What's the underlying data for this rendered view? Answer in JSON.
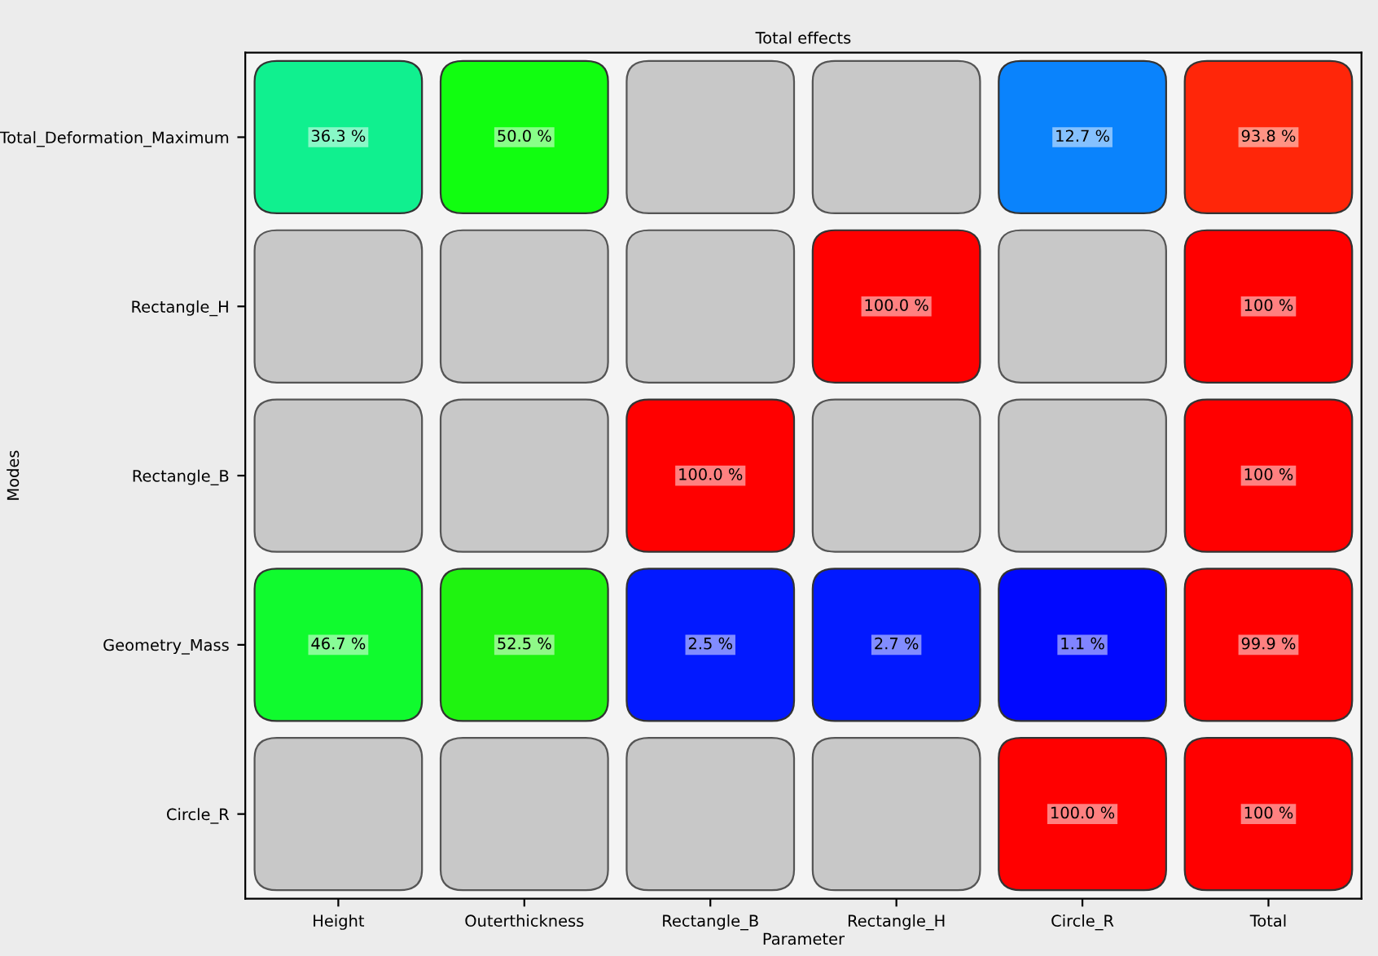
{
  "chart_data": {
    "type": "heatmap",
    "title": "Total effects",
    "xlabel": "Parameter",
    "ylabel": "Modes",
    "categories": [
      "Height",
      "Outerthickness",
      "Rectangle_B",
      "Rectangle_H",
      "Circle_R",
      "Total"
    ],
    "y_categories": [
      "Total_Deformation_Maximum",
      "Rectangle_H",
      "Rectangle_B",
      "Geometry_Mass",
      "Circle_R"
    ],
    "cells": [
      [
        36.3,
        50.0,
        null,
        null,
        12.7,
        93.8
      ],
      [
        null,
        null,
        null,
        100.0,
        null,
        100
      ],
      [
        null,
        null,
        100.0,
        null,
        null,
        100
      ],
      [
        46.7,
        52.5,
        2.5,
        2.7,
        1.1,
        99.9
      ],
      [
        null,
        null,
        null,
        null,
        100.0,
        100
      ]
    ],
    "cell_labels": [
      [
        "36.3 %",
        "50.0 %",
        null,
        null,
        "12.7 %",
        "93.8 %"
      ],
      [
        null,
        null,
        null,
        "100.0 %",
        null,
        "100 %"
      ],
      [
        null,
        null,
        "100.0 %",
        null,
        null,
        "100 %"
      ],
      [
        "46.7 %",
        "52.5 %",
        "2.5 %",
        "2.7 %",
        "1.1 %",
        "99.9 %"
      ],
      [
        null,
        null,
        null,
        null,
        "100.0 %",
        "100 %"
      ]
    ]
  }
}
